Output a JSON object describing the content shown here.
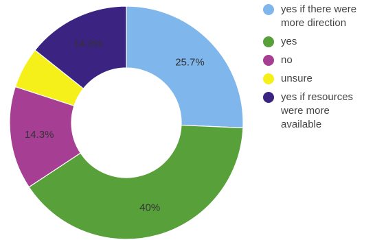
{
  "chart_data": {
    "type": "pie",
    "donut": true,
    "categories": [
      "yes if there were more direction",
      "yes",
      "no",
      "unsure",
      "yes if resources were more available"
    ],
    "values": [
      25.7,
      40,
      14.3,
      5.7,
      14.3
    ],
    "value_labels": [
      "25.7%",
      "40%",
      "14.3%",
      "",
      "14.3%"
    ],
    "colors": [
      "#7fb6ec",
      "#58a03a",
      "#a63f94",
      "#f6f01a",
      "#3a2381"
    ],
    "legend_position": "right"
  }
}
